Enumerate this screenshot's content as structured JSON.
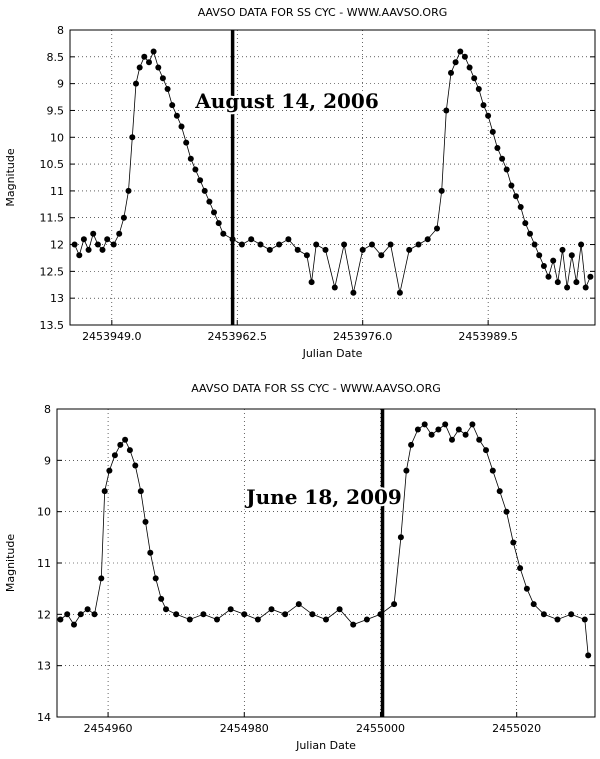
{
  "chart_data": [
    {
      "type": "scatter",
      "title": "AAVSO DATA FOR SS CYC - WWW.AAVSO.ORG",
      "xlabel": "Julian Date",
      "ylabel": "Magnitude",
      "xlim": [
        2453944.5,
        2454001.0
      ],
      "ylim": [
        8,
        13.5
      ],
      "y_inverted": true,
      "grid": true,
      "xticks": [
        2453949.0,
        2453962.5,
        2453976.0,
        2453989.5
      ],
      "xtick_labels": [
        "2453949.0",
        "2453962.5",
        "2453976.0",
        "2453989.5"
      ],
      "yticks": [
        8,
        8.5,
        9,
        9.5,
        10,
        10.5,
        11,
        11.5,
        12,
        12.5,
        13,
        13.5
      ],
      "ytick_labels": [
        "8",
        "8.5",
        "9",
        "9.5",
        "10",
        "10.5",
        "11",
        "11.5",
        "12",
        "12.5",
        "13",
        "13.5"
      ],
      "annotation": {
        "text": "August 14, 2006",
        "x": 2453962.0
      },
      "series": [
        {
          "marker": "circle",
          "points": [
            [
              2453945.0,
              12.0
            ],
            [
              2453945.5,
              12.2
            ],
            [
              2453946.0,
              11.9
            ],
            [
              2453946.5,
              12.1
            ],
            [
              2453947.0,
              11.8
            ],
            [
              2453947.5,
              12.0
            ],
            [
              2453948.0,
              12.1
            ],
            [
              2453948.5,
              11.9
            ],
            [
              2453949.2,
              12.0
            ],
            [
              2453949.8,
              11.8
            ],
            [
              2453950.3,
              11.5
            ],
            [
              2453950.8,
              11.0
            ],
            [
              2453951.2,
              10.0
            ],
            [
              2453951.6,
              9.0
            ],
            [
              2453952.0,
              8.7
            ],
            [
              2453952.5,
              8.5
            ],
            [
              2453953.0,
              8.6
            ],
            [
              2453953.5,
              8.4
            ],
            [
              2453954.0,
              8.7
            ],
            [
              2453954.5,
              8.9
            ],
            [
              2453955.0,
              9.1
            ],
            [
              2453955.5,
              9.4
            ],
            [
              2453956.0,
              9.6
            ],
            [
              2453956.5,
              9.8
            ],
            [
              2453957.0,
              10.1
            ],
            [
              2453957.5,
              10.4
            ],
            [
              2453958.0,
              10.6
            ],
            [
              2453958.5,
              10.8
            ],
            [
              2453959.0,
              11.0
            ],
            [
              2453959.5,
              11.2
            ],
            [
              2453960.0,
              11.4
            ],
            [
              2453960.5,
              11.6
            ],
            [
              2453961.0,
              11.8
            ],
            [
              2453962.0,
              11.9
            ],
            [
              2453963.0,
              12.0
            ],
            [
              2453964.0,
              11.9
            ],
            [
              2453965.0,
              12.0
            ],
            [
              2453966.0,
              12.1
            ],
            [
              2453967.0,
              12.0
            ],
            [
              2453968.0,
              11.9
            ],
            [
              2453969.0,
              12.1
            ],
            [
              2453970.0,
              12.2
            ],
            [
              2453970.5,
              12.7
            ],
            [
              2453971.0,
              12.0
            ],
            [
              2453972.0,
              12.1
            ],
            [
              2453973.0,
              12.8
            ],
            [
              2453974.0,
              12.0
            ],
            [
              2453975.0,
              12.9
            ],
            [
              2453976.0,
              12.1
            ],
            [
              2453977.0,
              12.0
            ],
            [
              2453978.0,
              12.2
            ],
            [
              2453979.0,
              12.0
            ],
            [
              2453980.0,
              12.9
            ],
            [
              2453981.0,
              12.1
            ],
            [
              2453982.0,
              12.0
            ],
            [
              2453983.0,
              11.9
            ],
            [
              2453984.0,
              11.7
            ],
            [
              2453984.5,
              11.0
            ],
            [
              2453985.0,
              9.5
            ],
            [
              2453985.5,
              8.8
            ],
            [
              2453986.0,
              8.6
            ],
            [
              2453986.5,
              8.4
            ],
            [
              2453987.0,
              8.5
            ],
            [
              2453987.5,
              8.7
            ],
            [
              2453988.0,
              8.9
            ],
            [
              2453988.5,
              9.1
            ],
            [
              2453989.0,
              9.4
            ],
            [
              2453989.5,
              9.6
            ],
            [
              2453990.0,
              9.9
            ],
            [
              2453990.5,
              10.2
            ],
            [
              2453991.0,
              10.4
            ],
            [
              2453991.5,
              10.6
            ],
            [
              2453992.0,
              10.9
            ],
            [
              2453992.5,
              11.1
            ],
            [
              2453993.0,
              11.3
            ],
            [
              2453993.5,
              11.6
            ],
            [
              2453994.0,
              11.8
            ],
            [
              2453994.5,
              12.0
            ],
            [
              2453995.0,
              12.2
            ],
            [
              2453995.5,
              12.4
            ],
            [
              2453996.0,
              12.6
            ],
            [
              2453996.5,
              12.3
            ],
            [
              2453997.0,
              12.7
            ],
            [
              2453997.5,
              12.1
            ],
            [
              2453998.0,
              12.8
            ],
            [
              2453998.5,
              12.2
            ],
            [
              2453999.0,
              12.7
            ],
            [
              2453999.5,
              12.0
            ],
            [
              2454000.0,
              12.8
            ],
            [
              2454000.5,
              12.6
            ]
          ]
        }
      ]
    },
    {
      "type": "scatter",
      "title": "AAVSO DATA FOR SS CYC - WWW.AAVSO.ORG",
      "xlabel": "Julian Date",
      "ylabel": "Magnitude",
      "xlim": [
        2454952.5,
        2455031.5
      ],
      "ylim": [
        8,
        14
      ],
      "y_inverted": true,
      "grid": true,
      "xticks": [
        2454960,
        2454980,
        2455000,
        2455020
      ],
      "xtick_labels": [
        "2454960",
        "2454980",
        "2455000",
        "2455020"
      ],
      "yticks": [
        8,
        9,
        10,
        11,
        12,
        13,
        14
      ],
      "ytick_labels": [
        "8",
        "9",
        "10",
        "11",
        "12",
        "13",
        "14"
      ],
      "annotation": {
        "text": "June 18, 2009",
        "x": 2455000.3
      },
      "series": [
        {
          "marker": "circle",
          "points": [
            [
              2454953.0,
              12.1
            ],
            [
              2454954.0,
              12.0
            ],
            [
              2454955.0,
              12.2
            ],
            [
              2454956.0,
              12.0
            ],
            [
              2454957.0,
              11.9
            ],
            [
              2454958.0,
              12.0
            ],
            [
              2454959.0,
              11.3
            ],
            [
              2454959.5,
              9.6
            ],
            [
              2454960.2,
              9.2
            ],
            [
              2454961.0,
              8.9
            ],
            [
              2454961.8,
              8.7
            ],
            [
              2454962.5,
              8.6
            ],
            [
              2454963.2,
              8.8
            ],
            [
              2454964.0,
              9.1
            ],
            [
              2454964.8,
              9.6
            ],
            [
              2454965.5,
              10.2
            ],
            [
              2454966.2,
              10.8
            ],
            [
              2454967.0,
              11.3
            ],
            [
              2454967.8,
              11.7
            ],
            [
              2454968.5,
              11.9
            ],
            [
              2454970.0,
              12.0
            ],
            [
              2454972.0,
              12.1
            ],
            [
              2454974.0,
              12.0
            ],
            [
              2454976.0,
              12.1
            ],
            [
              2454978.0,
              11.9
            ],
            [
              2454980.0,
              12.0
            ],
            [
              2454982.0,
              12.1
            ],
            [
              2454984.0,
              11.9
            ],
            [
              2454986.0,
              12.0
            ],
            [
              2454988.0,
              11.8
            ],
            [
              2454990.0,
              12.0
            ],
            [
              2454992.0,
              12.1
            ],
            [
              2454994.0,
              11.9
            ],
            [
              2454996.0,
              12.2
            ],
            [
              2454998.0,
              12.1
            ],
            [
              2455000.0,
              12.0
            ],
            [
              2455002.0,
              11.8
            ],
            [
              2455003.0,
              10.5
            ],
            [
              2455003.8,
              9.2
            ],
            [
              2455004.5,
              8.7
            ],
            [
              2455005.5,
              8.4
            ],
            [
              2455006.5,
              8.3
            ],
            [
              2455007.5,
              8.5
            ],
            [
              2455008.5,
              8.4
            ],
            [
              2455009.5,
              8.3
            ],
            [
              2455010.5,
              8.6
            ],
            [
              2455011.5,
              8.4
            ],
            [
              2455012.5,
              8.5
            ],
            [
              2455013.5,
              8.3
            ],
            [
              2455014.5,
              8.6
            ],
            [
              2455015.5,
              8.8
            ],
            [
              2455016.5,
              9.2
            ],
            [
              2455017.5,
              9.6
            ],
            [
              2455018.5,
              10.0
            ],
            [
              2455019.5,
              10.6
            ],
            [
              2455020.5,
              11.1
            ],
            [
              2455021.5,
              11.5
            ],
            [
              2455022.5,
              11.8
            ],
            [
              2455024.0,
              12.0
            ],
            [
              2455026.0,
              12.1
            ],
            [
              2455028.0,
              12.0
            ],
            [
              2455030.0,
              12.1
            ],
            [
              2455030.5,
              12.8
            ]
          ]
        }
      ]
    }
  ]
}
